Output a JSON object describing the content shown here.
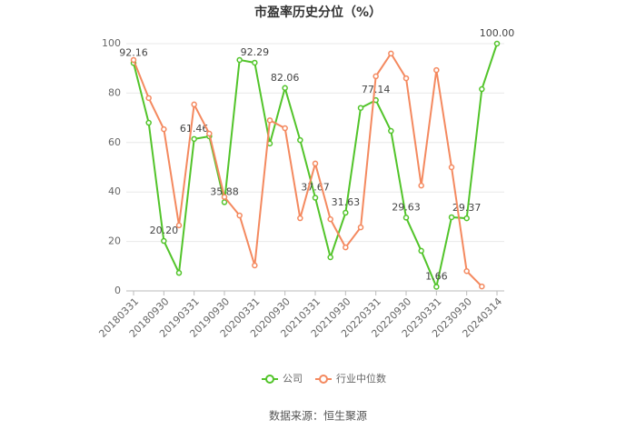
{
  "chart_data": {
    "type": "line",
    "title": "市盈率历史分位（%）",
    "categories": [
      "20180331",
      null,
      "20180930",
      null,
      "20190331",
      null,
      "20190930",
      null,
      "20200331",
      null,
      "20200930",
      null,
      "20210331",
      null,
      "20210930",
      null,
      "20220331",
      null,
      "20220930",
      null,
      "20230331",
      null,
      "20230930",
      null,
      "20240314"
    ],
    "series": [
      {
        "name": "公司",
        "color": "#52c42a",
        "values": [
          92.16,
          68,
          20.2,
          7.3,
          61.46,
          62.5,
          35.88,
          93.4,
          92.29,
          59.6,
          82.06,
          61,
          37.67,
          13.6,
          31.63,
          74,
          77.14,
          64.7,
          29.63,
          16.2,
          1.66,
          29.8,
          29.37,
          81.6,
          100
        ],
        "value_labels": [
          "92.16",
          null,
          "20.20",
          null,
          "61.46",
          null,
          "35.88",
          null,
          "92.29",
          null,
          "82.06",
          null,
          "37.67",
          null,
          "31.63",
          null,
          "77.14",
          null,
          "29.63",
          null,
          "1.66",
          null,
          "29.37",
          null,
          "100.00"
        ]
      },
      {
        "name": "行业中位数",
        "color": "#f4895f",
        "values": [
          93.4,
          78,
          65.4,
          26.5,
          75.4,
          63.6,
          38,
          30.5,
          10.3,
          69,
          65.8,
          29.4,
          51.5,
          29,
          17.6,
          25.7,
          86.8,
          96,
          86,
          42.6,
          89.3,
          50,
          8,
          1.8,
          null
        ]
      }
    ],
    "ylim": [
      0,
      100
    ],
    "yticks": [
      0,
      20,
      40,
      60,
      80,
      100
    ],
    "grid": true,
    "legend": "bottom",
    "source": "数据来源：恒生聚源"
  }
}
